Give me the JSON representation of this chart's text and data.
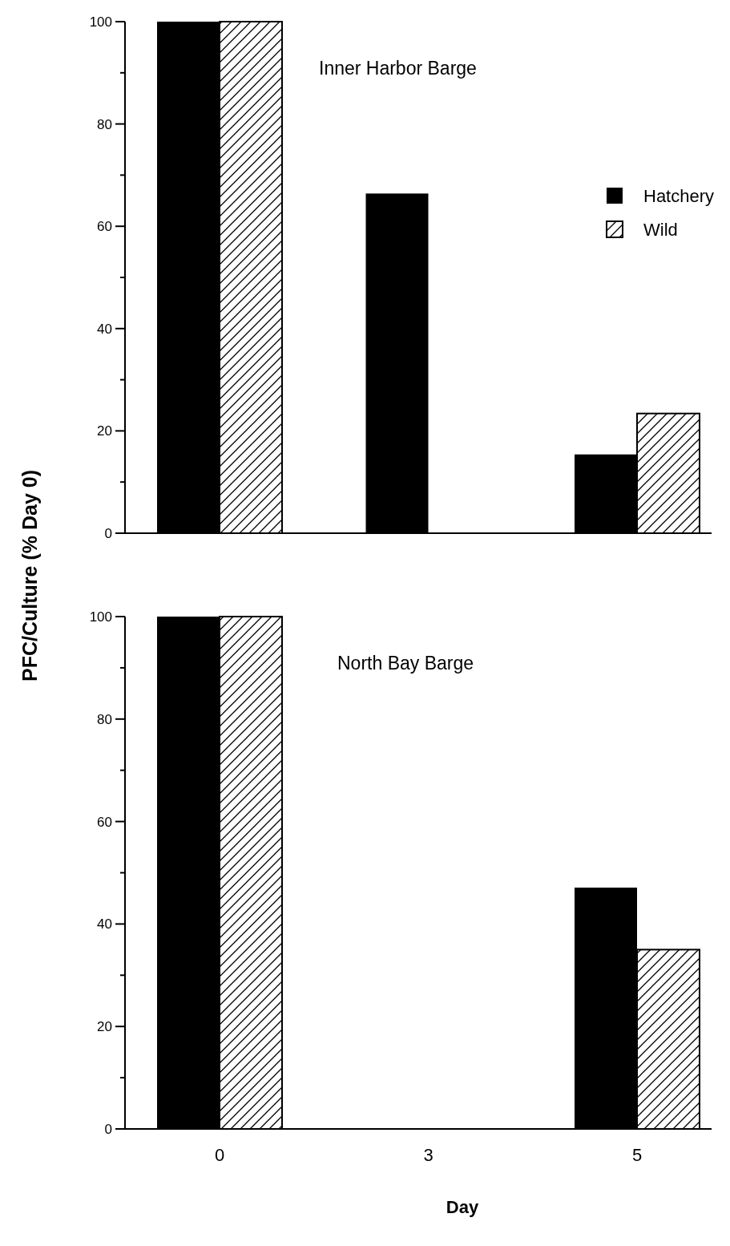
{
  "chart_data": [
    {
      "type": "bar",
      "title": "Inner Harbor Barge",
      "ylabel": "PFC/Culture (% Day 0)",
      "categories": [
        null,
        null,
        null
      ],
      "series": [
        {
          "name": "Hatchery",
          "color": "#000000",
          "values": [
            100,
            66.4,
            15.4
          ]
        },
        {
          "name": "Wild",
          "color": "#000000",
          "values": [
            100,
            null,
            23.4
          ]
        }
      ],
      "ylim": [
        0,
        100
      ],
      "yticks": [
        0,
        {
          "value": 10,
          "label": null
        },
        20,
        {
          "value": 30,
          "label": null
        },
        40,
        {
          "value": 50,
          "label": null
        },
        60,
        {
          "value": 70,
          "label": null
        },
        80,
        {
          "value": 90,
          "label": null
        },
        100
      ],
      "legend": "right",
      "grid": false
    },
    {
      "type": "bar",
      "title": "North Bay Barge",
      "xlabel": "Day",
      "categories": [
        "0",
        "3",
        "5"
      ],
      "series": [
        {
          "color": "#000000",
          "values": [
            100,
            null,
            47.1
          ]
        },
        {
          "color": "#000000",
          "values": [
            100,
            null,
            35.0
          ]
        }
      ],
      "ylim": [
        0,
        100
      ],
      "yticks": [
        0,
        {
          "value": 10,
          "label": null
        },
        20,
        {
          "value": 30,
          "label": null
        },
        40,
        {
          "value": 50,
          "label": null
        },
        60,
        {
          "value": 70,
          "label": null
        },
        80,
        {
          "value": 90,
          "label": null
        },
        100
      ],
      "grid": false
    }
  ]
}
